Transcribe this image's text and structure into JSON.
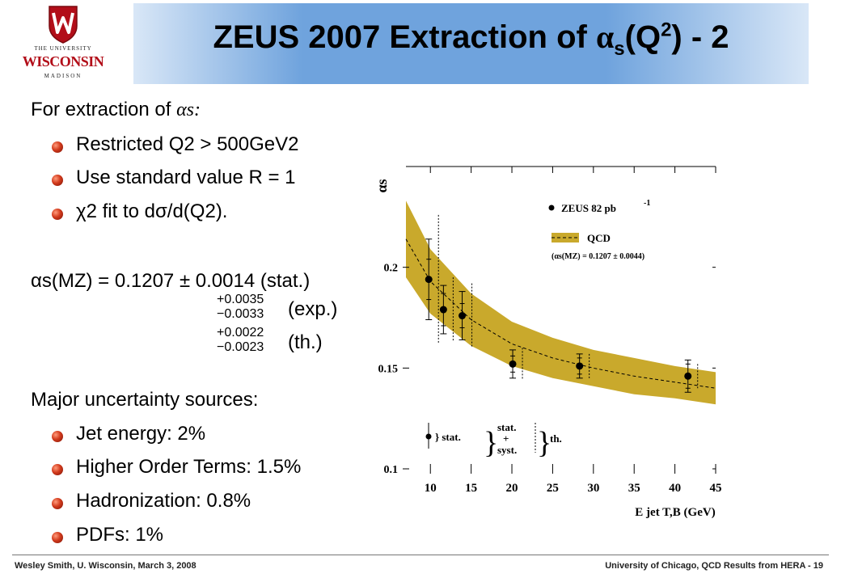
{
  "header": {
    "title_main": "ZEUS 2007 Extraction of ",
    "title_alpha": "α",
    "title_sub": "s",
    "title_q": "(Q",
    "title_sup": "2",
    "title_end": ") - 2",
    "logo": {
      "line1": "THE UNIVERSITY",
      "line2": "WISCONSIN",
      "line3": "MADISON"
    }
  },
  "content": {
    "extraction_heading": "For extraction of ",
    "extraction_symbol": "αs:",
    "bullets_top": [
      "Restricted Q2 > 500GeV2",
      "Use standard value R = 1",
      "χ2 fit to dσ/d(Q2)."
    ],
    "result_lhs": "αs(MZ) = 0.1207 ± 0.0014 (stat.)",
    "result_exp_up": "+0.0035",
    "result_exp_down": "−0.0033",
    "result_exp_label": "(exp.)",
    "result_th_up": "+0.0022",
    "result_th_down": "−0.0023",
    "result_th_label": "(th.)",
    "uncertainty_heading": "Major uncertainty sources:",
    "bullets_bottom": [
      "Jet energy: 2%",
      "Higher Order Terms: 1.5%",
      "Hadronization: 0.8%",
      "PDFs: 1%"
    ]
  },
  "footer": {
    "left": "Wesley Smith, U. Wisconsin, March 3, 2008",
    "right": "University of Chicago, QCD Results from HERA -  19"
  },
  "colors": {
    "band": "#c9a92c",
    "bullet": "#d23a1c",
    "banner": "#6fa3dd"
  },
  "chart_data": {
    "type": "scatter",
    "ylabel": "αs",
    "xlabel": "E jet T,B (GeV)",
    "xlim": [
      7,
      45
    ],
    "ylim": [
      0.1,
      0.25
    ],
    "x_ticks": [
      10,
      15,
      20,
      25,
      30,
      35,
      40,
      45
    ],
    "y_ticks": [
      0.1,
      0.15,
      0.2
    ],
    "y_tick_labels": [
      "0.1",
      "0.15",
      "0.2"
    ],
    "legend": {
      "data_label": "ZEUS 82 pb",
      "data_sup": "-1",
      "band_label": "QCD",
      "band_note": "(αs(MZ) = 0.1207 ± 0.0044)"
    },
    "error_legend": {
      "stat": "} stat.",
      "syst": "stat. + syst.",
      "th": "th."
    },
    "series": [
      {
        "name": "ZEUS 82 pb-1",
        "x": [
          9.8,
          11.6,
          13.9,
          20.1,
          28.3,
          41.6
        ],
        "y": [
          0.194,
          0.179,
          0.176,
          0.152,
          0.151,
          0.146
        ],
        "stat_err": [
          0.01,
          0.008,
          0.006,
          0.004,
          0.004,
          0.006
        ],
        "tot_err": [
          0.02,
          0.012,
          0.012,
          0.007,
          0.006,
          0.008
        ],
        "th_err": [
          0.032,
          0.016,
          0.016,
          0.008,
          0.006,
          0.006
        ]
      }
    ],
    "qcd_band": {
      "x": [
        7,
        10,
        15,
        20,
        25,
        30,
        35,
        40,
        45
      ],
      "center": [
        0.214,
        0.193,
        0.174,
        0.162,
        0.155,
        0.15,
        0.146,
        0.143,
        0.14
      ],
      "half_width": [
        0.019,
        0.016,
        0.013,
        0.011,
        0.01,
        0.009,
        0.009,
        0.008,
        0.008
      ]
    }
  }
}
